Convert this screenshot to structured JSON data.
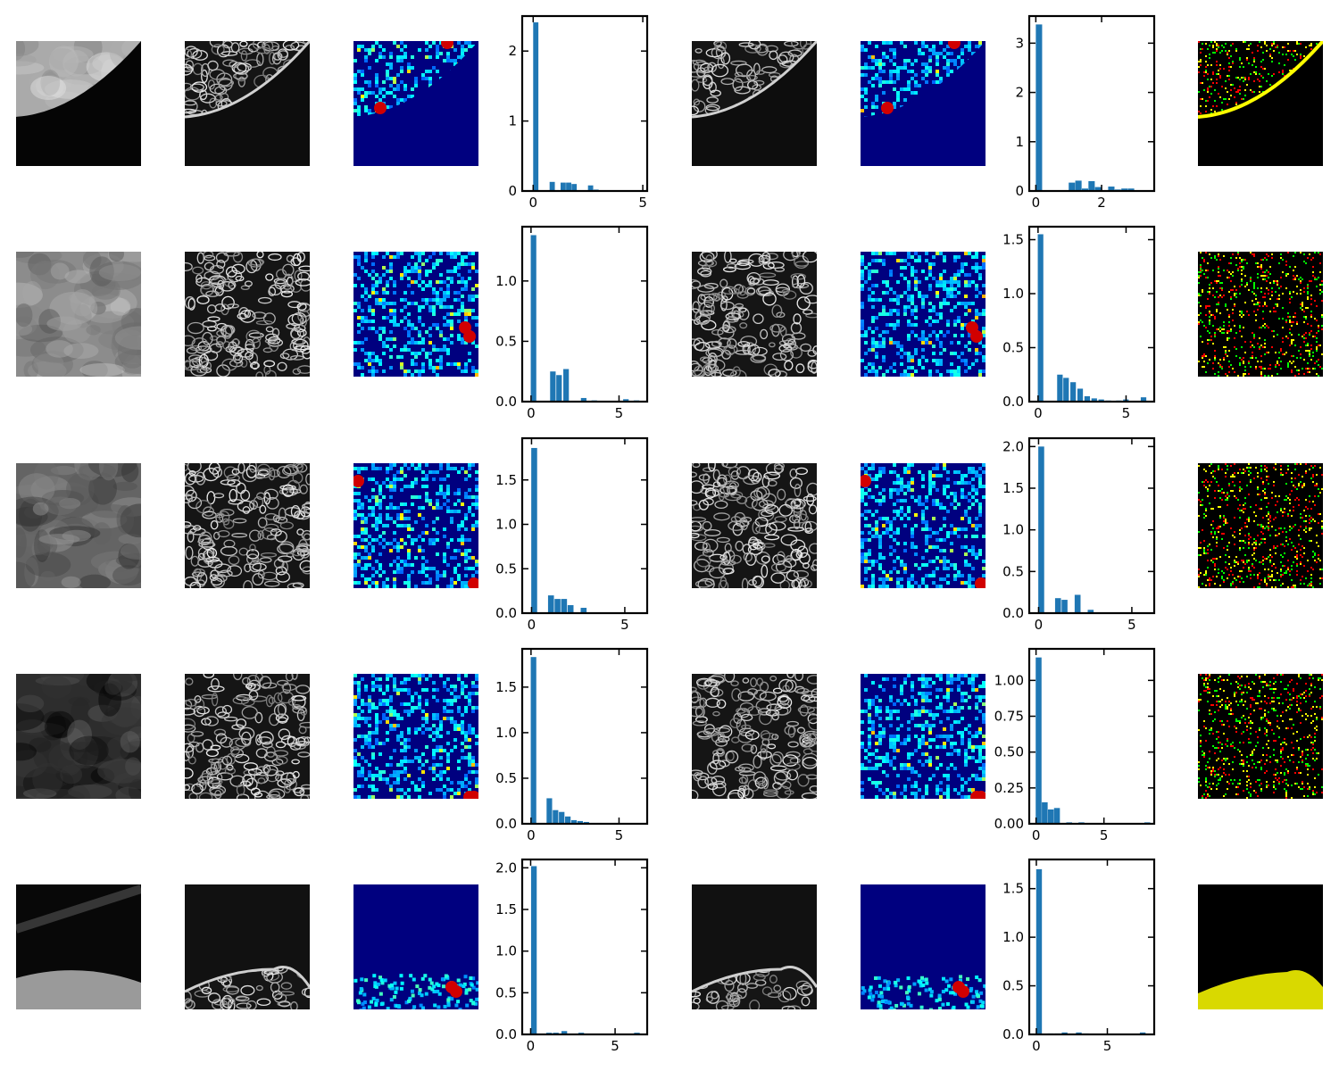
{
  "figure": {
    "rows": 5,
    "panel_types": [
      "grayscale-patch",
      "grayscale-patch",
      "jet-colormap-patch",
      "histogram",
      "grayscale-patch",
      "jet-colormap-patch",
      "histogram",
      "overlay-patch"
    ],
    "colors": {
      "background": "#ffffff",
      "bar": "#1f77b4",
      "jet_low": "#00007f",
      "overlay_red": "#ff0000",
      "overlay_green": "#00ff00",
      "overlay_yellow": "#ffff00"
    }
  },
  "chart_data": [
    {
      "type": "bar",
      "row": 1,
      "panel": "histogram-a",
      "xlim": [
        -0.5,
        5.2
      ],
      "ylim": [
        0,
        2.5
      ],
      "xticks": [
        "0",
        "5"
      ],
      "yticks": [
        "0",
        "1",
        "2"
      ],
      "x": [
        0.125,
        0.625,
        0.875,
        1.125,
        1.375,
        1.625,
        1.875,
        2.125,
        2.375,
        2.625,
        2.875,
        3.125,
        3.375,
        3.625
      ],
      "values": [
        2.41,
        0.0,
        0.13,
        0.0,
        0.12,
        0.12,
        0.1,
        0.0,
        0.0,
        0.08,
        0.02,
        0.0,
        0.0,
        0.0
      ],
      "bin_width": 0.25
    },
    {
      "type": "bar",
      "row": 1,
      "panel": "histogram-b",
      "xlim": [
        -0.2,
        3.6
      ],
      "ylim": [
        0,
        3.55
      ],
      "xticks": [
        "0",
        "2"
      ],
      "yticks": [
        "0",
        "1",
        "2",
        "3"
      ],
      "x": [
        0.1,
        0.9,
        1.1,
        1.3,
        1.5,
        1.7,
        1.9,
        2.1,
        2.3,
        2.5,
        2.7,
        2.9,
        3.1,
        3.3
      ],
      "values": [
        3.38,
        0.0,
        0.17,
        0.21,
        0.05,
        0.2,
        0.08,
        0.0,
        0.09,
        0.03,
        0.05,
        0.05,
        0.0,
        0.0
      ],
      "bin_width": 0.2
    },
    {
      "type": "bar",
      "row": 2,
      "panel": "histogram-a",
      "xlim": [
        -0.5,
        6.6
      ],
      "ylim": [
        0,
        1.45
      ],
      "xticks": [
        "0",
        "5"
      ],
      "yticks": [
        "0.0",
        "0.5",
        "1.0"
      ],
      "x": [
        0.15,
        1.25,
        1.6,
        2.0,
        2.4,
        3.0,
        3.6,
        4.2,
        4.8,
        5.4,
        6.0
      ],
      "values": [
        1.38,
        0.25,
        0.22,
        0.27,
        0.0,
        0.03,
        0.01,
        0.0,
        0.0,
        0.02,
        0.01
      ],
      "bin_width": 0.33
    },
    {
      "type": "bar",
      "row": 2,
      "panel": "histogram-b",
      "xlim": [
        -0.5,
        6.6
      ],
      "ylim": [
        0,
        1.62
      ],
      "xticks": [
        "0",
        "5"
      ],
      "yticks": [
        "0.0",
        "0.5",
        "1.0",
        "1.5"
      ],
      "x": [
        0.15,
        1.25,
        1.6,
        2.0,
        2.4,
        2.8,
        3.2,
        3.6,
        4.0,
        4.6,
        5.0,
        5.4,
        6.0
      ],
      "values": [
        1.55,
        0.25,
        0.22,
        0.18,
        0.12,
        0.05,
        0.03,
        0.02,
        0.01,
        0.01,
        0.02,
        0.0,
        0.04
      ],
      "bin_width": 0.33
    },
    {
      "type": "bar",
      "row": 3,
      "panel": "histogram-a",
      "xlim": [
        -0.5,
        6.2
      ],
      "ylim": [
        0,
        1.97
      ],
      "xticks": [
        "0",
        "5"
      ],
      "yticks": [
        "0.0",
        "0.5",
        "1.0",
        "1.5"
      ],
      "x": [
        0.15,
        1.05,
        1.4,
        1.75,
        2.1,
        2.45,
        2.8,
        3.15
      ],
      "values": [
        1.86,
        0.2,
        0.16,
        0.16,
        0.09,
        0.0,
        0.06,
        0.0
      ],
      "bin_width": 0.33
    },
    {
      "type": "bar",
      "row": 3,
      "panel": "histogram-b",
      "xlim": [
        -0.5,
        6.2
      ],
      "ylim": [
        0,
        2.1
      ],
      "xticks": [
        "0",
        "5"
      ],
      "yticks": [
        "0.0",
        "0.5",
        "1.0",
        "1.5",
        "2.0"
      ],
      "x": [
        0.15,
        1.05,
        1.4,
        1.75,
        2.1,
        2.45,
        2.8,
        3.15
      ],
      "values": [
        2.0,
        0.18,
        0.16,
        0.0,
        0.22,
        0.0,
        0.04,
        0.0
      ],
      "bin_width": 0.33
    },
    {
      "type": "bar",
      "row": 4,
      "panel": "histogram-a",
      "xlim": [
        -0.5,
        6.6
      ],
      "ylim": [
        0,
        1.92
      ],
      "xticks": [
        "0",
        "5"
      ],
      "yticks": [
        "0.0",
        "0.5",
        "1.0",
        "1.5"
      ],
      "x": [
        0.15,
        1.05,
        1.4,
        1.75,
        2.1,
        2.45,
        2.8,
        3.15,
        3.5,
        3.85,
        4.2,
        4.55,
        4.9
      ],
      "values": [
        1.83,
        0.28,
        0.15,
        0.13,
        0.08,
        0.04,
        0.03,
        0.02,
        0.01,
        0.01,
        0.0,
        0.0,
        0.01
      ],
      "bin_width": 0.33
    },
    {
      "type": "bar",
      "row": 4,
      "panel": "histogram-b",
      "xlim": [
        -0.5,
        8.7
      ],
      "ylim": [
        0,
        1.22
      ],
      "xticks": [
        "0",
        "5"
      ],
      "yticks": [
        "0.00",
        "0.25",
        "0.50",
        "0.75",
        "1.00"
      ],
      "x": [
        0.2,
        0.65,
        1.1,
        1.55,
        2.0,
        2.45,
        2.9,
        3.35,
        3.8,
        4.25,
        4.7,
        8.2
      ],
      "values": [
        1.16,
        0.15,
        0.1,
        0.11,
        0.0,
        0.01,
        0.0,
        0.01,
        0.0,
        0.0,
        0.0,
        0.01
      ],
      "bin_width": 0.45
    },
    {
      "type": "bar",
      "row": 5,
      "panel": "histogram-a",
      "xlim": [
        -0.5,
        6.9
      ],
      "ylim": [
        0,
        2.1
      ],
      "xticks": [
        "0",
        "5"
      ],
      "yticks": [
        "0.0",
        "0.5",
        "1.0",
        "1.5",
        "2.0"
      ],
      "x": [
        0.2,
        1.1,
        1.5,
        2.0,
        2.5,
        3.0,
        6.3
      ],
      "values": [
        2.02,
        0.02,
        0.02,
        0.04,
        0.0,
        0.02,
        0.02
      ],
      "bin_width": 0.35
    },
    {
      "type": "bar",
      "row": 5,
      "panel": "histogram-b",
      "xlim": [
        -0.5,
        8.3
      ],
      "ylim": [
        0,
        1.8
      ],
      "xticks": [
        "0",
        "5"
      ],
      "yticks": [
        "0.0",
        "0.5",
        "1.0",
        "1.5"
      ],
      "x": [
        0.2,
        1.0,
        1.5,
        2.0,
        2.5,
        3.0,
        3.5,
        7.5
      ],
      "values": [
        1.7,
        0.01,
        0.01,
        0.02,
        0.0,
        0.02,
        0.01,
        0.02
      ],
      "bin_width": 0.42
    }
  ]
}
